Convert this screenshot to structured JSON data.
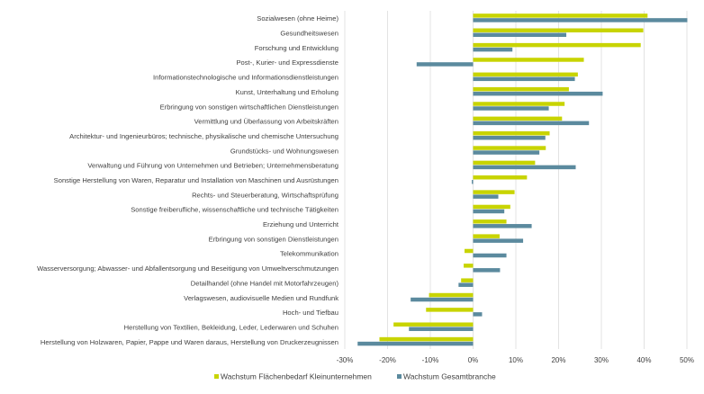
{
  "chart_data": {
    "type": "bar",
    "orientation": "horizontal",
    "categories": [
      "Sozialwesen (ohne Heime)",
      "Gesundheitswesen",
      "Forschung und Entwicklung",
      "Post-, Kurier- und Expressdienste",
      "Informationstechnologische und Informationsdienstleistungen",
      "Kunst, Unterhaltung und Erholung",
      "Erbringung von sonstigen wirtschaftlichen Dienstleistungen",
      "Vermittlung und Überlassung von Arbeitskräften",
      "Architektur- und Ingenieurbüros; technische, physikalische und chemische Untersuchung",
      "Grundstücks- und Wohnungswesen",
      "Verwaltung und Führung von Unternehmen und Betrieben; Unternehmensberatung",
      "Sonstige Herstellung von Waren, Reparatur und Installation von Maschinen und Ausrüstungen",
      "Rechts- und Steuerberatung, Wirtschaftsprüfung",
      "Sonstige freiberufliche, wissenschaftliche und technische Tätigkeiten",
      "Erziehung und Unterricht",
      "Erbringung von sonstigen Dienstleistungen",
      "Telekommunikation",
      "Wasserversorgung; Abwasser- und Abfallentsorgung und Beseitigung von Umweltverschmutzungen",
      "Detailhandel (ohne Handel mit Motorfahrzeugen)",
      "Verlagswesen, audiovisuelle Medien und Rundfunk",
      "Hoch- und Tiefbau",
      "Herstellung von Textilien, Bekleidung, Leder, Lederwaren und Schuhen",
      "Herstellung von Holzwaren, Papier, Pappe und Waren daraus, Herstellung von Druckerzeugnissen"
    ],
    "series": [
      {
        "name": "Wachstum Flächenbedarf Kleinunternehmen",
        "color": "#c8d400",
        "values": [
          40.8,
          39.8,
          39.2,
          25.9,
          24.5,
          22.4,
          21.4,
          20.8,
          17.9,
          17.0,
          14.5,
          12.6,
          9.7,
          8.7,
          7.8,
          6.2,
          -2.0,
          -2.2,
          -2.8,
          -10.3,
          -11.0,
          -18.6,
          -21.9
        ]
      },
      {
        "name": "Wachstum Gesamtbranche",
        "color": "#5b8a9e",
        "values": [
          50.1,
          21.8,
          9.2,
          -13.2,
          23.8,
          30.3,
          17.7,
          27.1,
          16.9,
          15.5,
          24.0,
          -0.3,
          5.9,
          7.3,
          13.7,
          11.7,
          7.8,
          6.3,
          -3.4,
          -14.6,
          2.1,
          -15.0,
          -27.0
        ]
      }
    ],
    "xlim": [
      -30,
      50
    ],
    "xticks": [
      "-30%",
      "-20%",
      "-10%",
      "0%",
      "10%",
      "20%",
      "30%",
      "40%",
      "50%"
    ],
    "xtick_values": [
      -30,
      -20,
      -10,
      0,
      10,
      20,
      30,
      40,
      50
    ],
    "grid": "vertical",
    "legend": "bottom"
  }
}
